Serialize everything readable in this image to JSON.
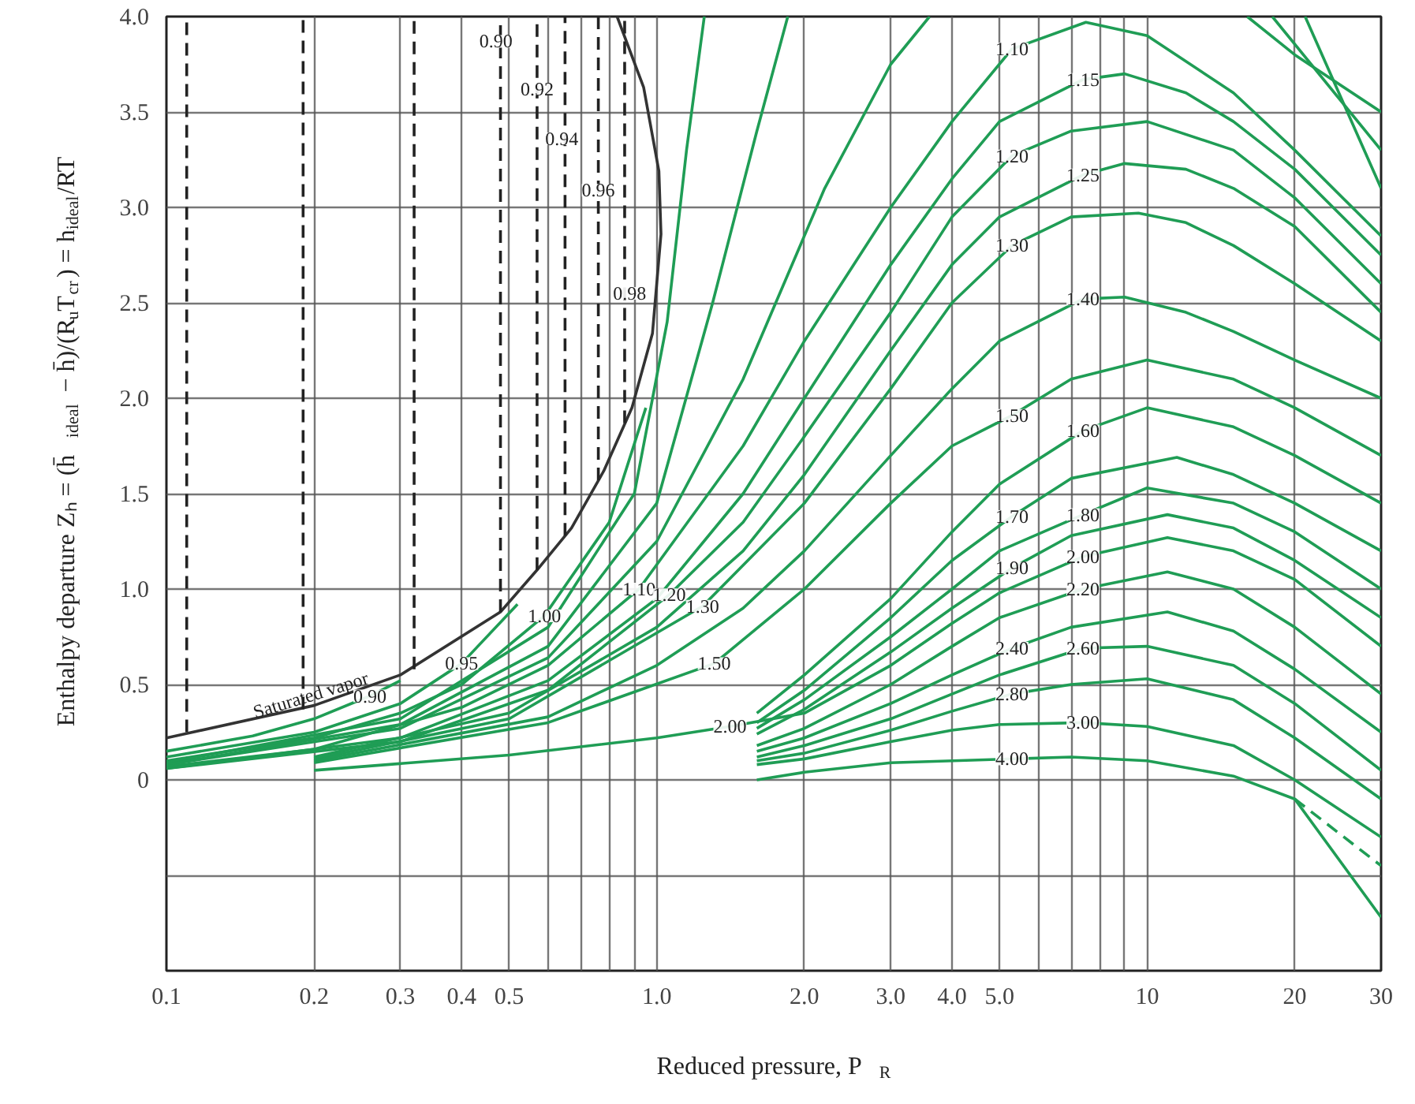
{
  "chart_data": {
    "type": "line",
    "xlabel": "Reduced pressure, P$_{R}$",
    "ylabel": "Enthalpy departure Zₕ = (h̄$_{ideal}$ − h̄)/(R$_{u}$T$_{cr}$) = h$_{ideal}$/RT",
    "log": "x",
    "grid": true,
    "line_style": "solid",
    "marker": "none",
    "xlim": [
      0.1,
      30
    ],
    "ylim": [
      -1,
      4
    ],
    "xticks": [
      {
        "value": 0.1,
        "label": "0.1"
      },
      {
        "value": 0.2,
        "label": "0.2"
      },
      {
        "value": 0.3,
        "label": "0.3"
      },
      {
        "value": 0.4,
        "label": "0.4"
      },
      {
        "value": 0.5,
        "label": "0.5"
      },
      {
        "value": 0.6,
        "label": null
      },
      {
        "value": 0.7,
        "label": null
      },
      {
        "value": 0.8,
        "label": null
      },
      {
        "value": 0.9,
        "label": null
      },
      {
        "value": 1,
        "label": "1.0"
      },
      {
        "value": 2,
        "label": "2.0"
      },
      {
        "value": 3,
        "label": "3.0"
      },
      {
        "value": 4,
        "label": "4.0"
      },
      {
        "value": 5,
        "label": "5.0"
      },
      {
        "value": 6,
        "label": null
      },
      {
        "value": 7,
        "label": null
      },
      {
        "value": 8,
        "label": null
      },
      {
        "value": 9,
        "label": null
      },
      10,
      20,
      30
    ],
    "yticks": [
      {
        "value": -1,
        "label": null
      },
      {
        "value": -0.5,
        "label": null
      },
      0,
      {
        "value": 0.5,
        "label": "0.5"
      },
      {
        "value": 1,
        "label": "1.0"
      },
      {
        "value": 1.5,
        "label": "1.5"
      },
      {
        "value": 2,
        "label": "2.0"
      },
      {
        "value": 2.5,
        "label": "2.5"
      },
      {
        "value": 3,
        "label": "3.0"
      },
      {
        "value": 3.5,
        "label": "3.5"
      },
      {
        "value": 4,
        "label": "4.0"
      }
    ],
    "series": [
      {
        "color": "#333333",
        "x": [
          0.1,
          0.2,
          0.3,
          0.48,
          0.57,
          0.67,
          0.78,
          0.89,
          0.98,
          1.02,
          1.01,
          0.94,
          0.83
        ],
        "values": [
          0.22,
          0.39,
          0.55,
          0.88,
          1.1,
          1.32,
          1.62,
          1.95,
          2.34,
          2.86,
          3.19,
          3.63,
          4.0
        ]
      },
      {
        "color": "#222222",
        "line_style": "dashed",
        "x": [
          0.11,
          0.11
        ],
        "values": [
          0.25,
          4.0
        ]
      },
      {
        "color": "#222222",
        "line_style": "dashed",
        "x": [
          0.19,
          0.19
        ],
        "values": [
          0.37,
          4.0
        ]
      },
      {
        "color": "#222222",
        "line_style": "dashed",
        "x": [
          0.32,
          0.32
        ],
        "values": [
          0.58,
          4.0
        ]
      },
      {
        "color": "#222222",
        "line_style": "dashed",
        "x": [
          0.48,
          0.48
        ],
        "values": [
          0.88,
          4.0
        ]
      },
      {
        "color": "#222222",
        "line_style": "dashed",
        "x": [
          0.57,
          0.57
        ],
        "values": [
          1.1,
          4.0
        ]
      },
      {
        "color": "#222222",
        "line_style": "dashed",
        "x": [
          0.65,
          0.65
        ],
        "values": [
          1.28,
          4.0
        ]
      },
      {
        "color": "#222222",
        "line_style": "dashed",
        "x": [
          0.76,
          0.76
        ],
        "values": [
          1.57,
          4.0
        ]
      },
      {
        "color": "#222222",
        "line_style": "dashed",
        "x": [
          0.86,
          0.86
        ],
        "values": [
          1.87,
          4.0
        ]
      },
      {
        "color": "#1f9d55",
        "x": [
          0.1,
          0.15,
          0.2,
          0.26,
          0.3
        ],
        "values": [
          0.15,
          0.23,
          0.32,
          0.44,
          0.52
        ]
      },
      {
        "color": "#1f9d55",
        "x": [
          0.1,
          0.2,
          0.3,
          0.4,
          0.52
        ],
        "values": [
          0.12,
          0.25,
          0.4,
          0.61,
          0.92
        ]
      },
      {
        "color": "#1f9d55",
        "x": [
          0.1,
          0.2,
          0.3,
          0.4,
          0.59,
          0.8,
          0.95
        ],
        "values": [
          0.1,
          0.22,
          0.35,
          0.5,
          0.86,
          1.35,
          1.95
        ]
      },
      {
        "color": "#1f9d55",
        "x": [
          0.1,
          0.3,
          0.6,
          0.9,
          1.05,
          1.15,
          1.25,
          5,
          16,
          20,
          30
        ],
        "values": [
          0.09,
          0.32,
          0.8,
          1.5,
          2.4,
          3.3,
          4.0,
          null,
          4.0,
          3.8,
          3.5
        ]
      },
      {
        "color": "#1f9d55",
        "x": [
          0.1,
          0.3,
          0.6,
          1.0,
          1.3,
          1.6,
          1.85,
          5,
          18,
          30
        ],
        "values": [
          0.08,
          0.29,
          0.7,
          1.45,
          2.5,
          3.4,
          4.0,
          null,
          4.0,
          3.3
        ]
      },
      {
        "color": "#1f9d55",
        "x": [
          0.1,
          0.3,
          0.6,
          1.0,
          1.5,
          2.2,
          3.0,
          3.6,
          5,
          21,
          30
        ],
        "values": [
          0.08,
          0.27,
          0.64,
          1.25,
          2.1,
          3.1,
          3.75,
          4.0,
          null,
          4.0,
          3.1
        ]
      },
      {
        "color": "#1f9d55",
        "x": [
          0.1,
          0.2,
          0.4,
          0.6,
          0.92,
          1.5,
          2,
          3,
          4,
          5.3,
          7.5,
          10,
          15,
          20,
          30
        ],
        "values": [
          0.07,
          0.16,
          0.38,
          0.6,
          1.0,
          1.75,
          2.3,
          3.0,
          3.45,
          3.83,
          3.97,
          3.9,
          3.6,
          3.3,
          2.85
        ]
      },
      {
        "color": "#1f9d55",
        "x": [
          0.1,
          0.3,
          0.6,
          1.0,
          1.5,
          2,
          3,
          4,
          5,
          7.4,
          9,
          12,
          15,
          20,
          30
        ],
        "values": [
          0.06,
          0.22,
          0.52,
          0.95,
          1.5,
          2.0,
          2.7,
          3.15,
          3.45,
          3.67,
          3.7,
          3.6,
          3.45,
          3.2,
          2.75
        ]
      },
      {
        "color": "#1f9d55",
        "x": [
          0.1,
          0.3,
          0.6,
          1.06,
          1.5,
          2,
          3,
          4,
          5.3,
          7,
          10,
          15,
          20,
          30
        ],
        "values": [
          0.06,
          0.2,
          0.47,
          0.97,
          1.35,
          1.8,
          2.45,
          2.95,
          3.27,
          3.4,
          3.45,
          3.3,
          3.05,
          2.6
        ]
      },
      {
        "color": "#1f9d55",
        "x": [
          0.2,
          0.5,
          1,
          1.5,
          2,
          3,
          4,
          5,
          7.4,
          9,
          12,
          15,
          20,
          30
        ],
        "values": [
          0.12,
          0.35,
          0.8,
          1.2,
          1.6,
          2.25,
          2.7,
          2.95,
          3.17,
          3.23,
          3.2,
          3.1,
          2.9,
          2.45
        ]
      },
      {
        "color": "#1f9d55",
        "x": [
          0.2,
          0.5,
          1.24,
          2,
          3,
          4,
          5.3,
          7,
          9.6,
          12,
          15,
          20,
          30
        ],
        "values": [
          0.11,
          0.32,
          0.91,
          1.45,
          2.05,
          2.5,
          2.8,
          2.95,
          2.97,
          2.92,
          2.8,
          2.6,
          2.3
        ]
      },
      {
        "color": "#1f9d55",
        "x": [
          0.2,
          0.6,
          1.0,
          1.5,
          2,
          3,
          4,
          5,
          7.4,
          9,
          12,
          15,
          20,
          30
        ],
        "values": [
          0.1,
          0.33,
          0.6,
          0.9,
          1.2,
          1.7,
          2.05,
          2.3,
          2.52,
          2.53,
          2.45,
          2.35,
          2.2,
          2.0
        ]
      },
      {
        "color": "#1f9d55",
        "x": [
          0.2,
          0.6,
          1.31,
          2,
          3,
          4,
          5.3,
          7,
          10,
          15,
          20,
          30
        ],
        "values": [
          0.09,
          0.3,
          0.61,
          1.0,
          1.45,
          1.75,
          1.91,
          2.1,
          2.2,
          2.1,
          1.95,
          1.7
        ]
      },
      {
        "color": "#1f9d55",
        "x": [
          1.6,
          2,
          3,
          4,
          5,
          7.4,
          10,
          15,
          20,
          30
        ],
        "values": [
          0.35,
          0.55,
          0.95,
          1.3,
          1.55,
          1.83,
          1.95,
          1.85,
          1.7,
          1.45
        ]
      },
      {
        "color": "#1f9d55",
        "x": [
          1.6,
          2,
          3,
          4,
          5.3,
          7,
          11.5,
          15,
          20,
          30
        ],
        "values": [
          0.3,
          0.47,
          0.85,
          1.15,
          1.38,
          1.58,
          1.69,
          1.6,
          1.45,
          1.2
        ]
      },
      {
        "color": "#1f9d55",
        "x": [
          1.6,
          2,
          3,
          4,
          5,
          7.4,
          10,
          15,
          20,
          30
        ],
        "values": [
          0.27,
          0.42,
          0.75,
          1.0,
          1.2,
          1.39,
          1.53,
          1.45,
          1.3,
          1.0
        ]
      },
      {
        "color": "#1f9d55",
        "x": [
          1.6,
          2,
          3,
          4,
          5.3,
          7,
          11,
          15,
          20,
          30
        ],
        "values": [
          0.24,
          0.37,
          0.67,
          0.9,
          1.11,
          1.28,
          1.39,
          1.32,
          1.15,
          0.85
        ]
      },
      {
        "color": "#1f9d55",
        "x": [
          0.2,
          0.5,
          1.0,
          1.41,
          2,
          3,
          4,
          5,
          7.4,
          11,
          15,
          20,
          30
        ],
        "values": [
          0.05,
          0.13,
          0.22,
          0.28,
          0.35,
          0.6,
          0.82,
          0.98,
          1.17,
          1.27,
          1.2,
          1.05,
          0.7
        ]
      },
      {
        "color": "#1f9d55",
        "x": [
          1.6,
          2,
          3,
          4,
          5,
          7.4,
          11,
          15,
          20,
          30
        ],
        "values": [
          0.18,
          0.27,
          0.5,
          0.7,
          0.85,
          1.0,
          1.09,
          1.0,
          0.8,
          0.45
        ]
      },
      {
        "color": "#1f9d55",
        "x": [
          1.6,
          2,
          3,
          4,
          5.3,
          7,
          11,
          15,
          20,
          30
        ],
        "values": [
          0.15,
          0.22,
          0.4,
          0.55,
          0.69,
          0.8,
          0.88,
          0.78,
          0.58,
          0.25
        ]
      },
      {
        "color": "#1f9d55",
        "x": [
          1.6,
          2,
          3,
          4,
          5,
          7.4,
          10,
          15,
          20,
          30
        ],
        "values": [
          0.12,
          0.18,
          0.32,
          0.45,
          0.55,
          0.69,
          0.7,
          0.6,
          0.4,
          0.05
        ]
      },
      {
        "color": "#1f9d55",
        "x": [
          1.6,
          2,
          3,
          4,
          5.3,
          7,
          10,
          15,
          20,
          30
        ],
        "values": [
          0.1,
          0.14,
          0.26,
          0.36,
          0.45,
          0.5,
          0.53,
          0.42,
          0.22,
          -0.1
        ]
      },
      {
        "color": "#1f9d55",
        "x": [
          1.6,
          2,
          3,
          4,
          5,
          7.4,
          10,
          15,
          20,
          30
        ],
        "values": [
          0.08,
          0.11,
          0.2,
          0.26,
          0.29,
          0.3,
          0.28,
          0.18,
          0.0,
          -0.3
        ]
      },
      {
        "color": "#1f9d55",
        "x": [
          1.6,
          2,
          3,
          5.3,
          7,
          10,
          15,
          20,
          30
        ],
        "values": [
          0.0,
          0.04,
          0.09,
          0.11,
          0.12,
          0.1,
          0.02,
          -0.1,
          -0.72
        ]
      },
      {
        "color": "#1f9d55",
        "line_style": "dashed",
        "x": [
          20,
          30
        ],
        "values": [
          -0.1,
          -0.45
        ]
      }
    ],
    "annotations": [
      "Saturated vapor",
      {
        "text": "0.90",
        "x": 0.47,
        "y": 3.87
      },
      {
        "text": "0.92",
        "x": 0.57,
        "y": 3.62
      },
      {
        "text": "0.94",
        "x": 0.64,
        "y": 3.36
      },
      {
        "text": "0.96",
        "x": 0.76,
        "y": 3.09
      },
      {
        "text": "0.98",
        "x": 0.88,
        "y": 2.55
      },
      {
        "text": "0.90",
        "x": 0.26,
        "y": 0.44
      },
      {
        "text": "0.95",
        "x": 0.4,
        "y": 0.61
      },
      {
        "text": "1.00",
        "x": 0.59,
        "y": 0.86
      },
      {
        "text": "1.10",
        "x": 0.92,
        "y": 1.0
      },
      {
        "text": "1.20",
        "x": 1.06,
        "y": 0.97
      },
      {
        "text": "1.30",
        "x": 1.24,
        "y": 0.91
      },
      {
        "text": "1.50",
        "x": 1.31,
        "y": 0.61
      },
      {
        "text": "2.00",
        "x": 1.41,
        "y": 0.28
      },
      {
        "text": "1.10",
        "x": 5.3,
        "y": 3.83
      },
      {
        "text": "1.15",
        "x": 7.4,
        "y": 3.67
      },
      {
        "text": "1.20",
        "x": 5.3,
        "y": 3.27
      },
      {
        "text": "1.25",
        "x": 7.4,
        "y": 3.17
      },
      {
        "text": "1.30",
        "x": 5.3,
        "y": 2.8
      },
      {
        "text": "1.40",
        "x": 7.4,
        "y": 2.52
      },
      {
        "text": "1.50",
        "x": 5.3,
        "y": 1.91
      },
      {
        "text": "1.60",
        "x": 7.4,
        "y": 1.83
      },
      {
        "text": "1.70",
        "x": 5.3,
        "y": 1.38
      },
      {
        "text": "1.80",
        "x": 7.4,
        "y": 1.39
      },
      {
        "text": "1.90",
        "x": 5.3,
        "y": 1.11
      },
      {
        "text": "2.00",
        "x": 7.4,
        "y": 1.17
      },
      {
        "text": "2.20",
        "x": 7.4,
        "y": 1.0
      },
      {
        "text": "2.40",
        "x": 5.3,
        "y": 0.69
      },
      {
        "text": "2.60",
        "x": 7.4,
        "y": 0.69
      },
      {
        "text": "2.80",
        "x": 5.3,
        "y": 0.45
      },
      {
        "text": "3.00",
        "x": 7.4,
        "y": 0.3
      },
      {
        "text": "4.00",
        "x": 5.3,
        "y": 0.11
      }
    ]
  }
}
